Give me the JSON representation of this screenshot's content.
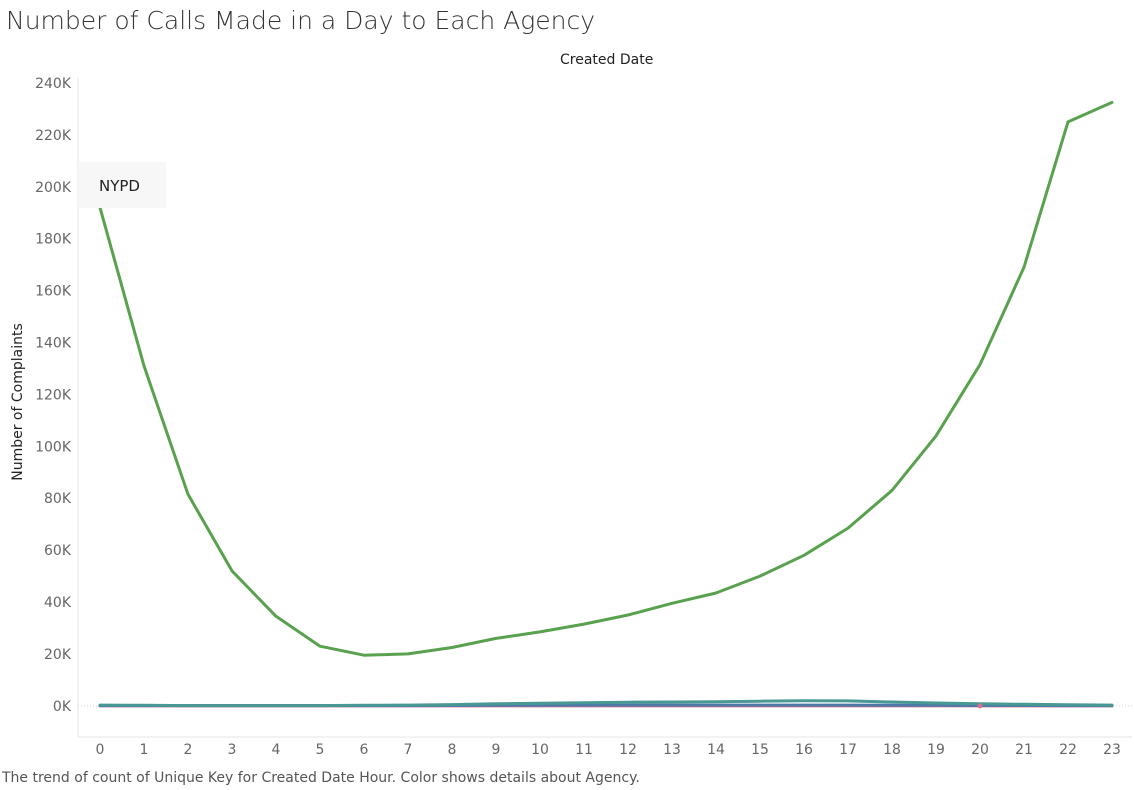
{
  "title": "Number of Calls Made in a Day to Each Agency",
  "caption": "The trend of count of Unique Key for Created Date Hour.  Color shows details about Agency.",
  "chart_data": {
    "type": "line",
    "title": "Number of Calls Made in a Day to Each Agency",
    "xlabel": "Created Date",
    "ylabel": "Number of Complaints",
    "x": [
      0,
      1,
      2,
      3,
      4,
      5,
      6,
      7,
      8,
      9,
      10,
      11,
      12,
      13,
      14,
      15,
      16,
      17,
      18,
      19,
      20,
      21,
      22,
      23
    ],
    "x_tick_labels": [
      "0",
      "1",
      "2",
      "3",
      "4",
      "5",
      "6",
      "7",
      "8",
      "9",
      "10",
      "11",
      "12",
      "13",
      "14",
      "15",
      "16",
      "17",
      "18",
      "19",
      "20",
      "21",
      "22",
      "23"
    ],
    "ylim": [
      -12000,
      245000
    ],
    "y_ticks": [
      0,
      20000,
      40000,
      60000,
      80000,
      100000,
      120000,
      140000,
      160000,
      180000,
      200000,
      220000,
      240000
    ],
    "y_tick_labels": [
      "0K",
      "20K",
      "40K",
      "60K",
      "80K",
      "100K",
      "120K",
      "140K",
      "160K",
      "180K",
      "200K",
      "220K",
      "240K"
    ],
    "grid": "zero line only",
    "series": [
      {
        "name": "NYPD",
        "color": "#59a14f",
        "values": [
          192000,
          131000,
          81500,
          52000,
          34500,
          23000,
          19500,
          20000,
          22500,
          26000,
          28500,
          31500,
          35000,
          39500,
          43500,
          50000,
          58000,
          68500,
          83000,
          104000,
          131500,
          169000,
          225000,
          232500
        ]
      },
      {
        "color": "#499894",
        "values": [
          300,
          200,
          100,
          100,
          100,
          100,
          200,
          300,
          500,
          800,
          1000,
          1200,
          1400,
          1500,
          1600,
          1800,
          2000,
          1900,
          1500,
          1100,
          800,
          600,
          400,
          300
        ]
      },
      {
        "color": "#4e79a7",
        "values": [
          100,
          100,
          100,
          100,
          100,
          100,
          100,
          100,
          150,
          200,
          250,
          300,
          300,
          300,
          300,
          300,
          300,
          300,
          250,
          200,
          150,
          150,
          100,
          100
        ]
      },
      {
        "color": "#d37295",
        "values": [
          0,
          0,
          0,
          0,
          0,
          0,
          0,
          0,
          0,
          0,
          0,
          0,
          0,
          0,
          0,
          0,
          0,
          0,
          0,
          0,
          0,
          0,
          0,
          0
        ]
      }
    ],
    "annotation": {
      "text": "NYPD",
      "x": 0,
      "y": 192000
    },
    "legend": "none"
  }
}
